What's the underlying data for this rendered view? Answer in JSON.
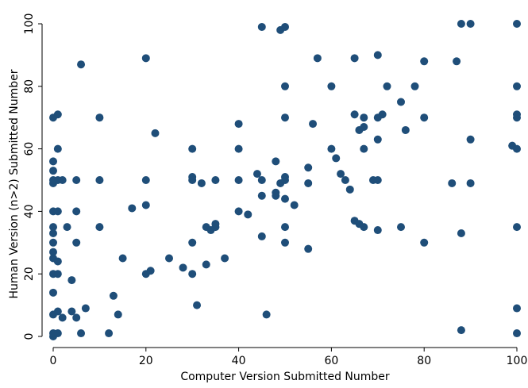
{
  "chart_data": {
    "type": "scatter",
    "xlabel": "Computer Version Submitted Number",
    "ylabel": "Human Version (n>2) Submitted Number",
    "xlim": [
      0,
      100
    ],
    "ylim": [
      0,
      100
    ],
    "xticks": [
      0,
      20,
      40,
      60,
      80,
      100
    ],
    "yticks": [
      0,
      20,
      40,
      60,
      80,
      100
    ],
    "grid": false,
    "marker_color": "#1f4e79",
    "points": [
      [
        0,
        0
      ],
      [
        0,
        1
      ],
      [
        0,
        7
      ],
      [
        0,
        14
      ],
      [
        0,
        20
      ],
      [
        0,
        25
      ],
      [
        0,
        27
      ],
      [
        0,
        30
      ],
      [
        0,
        33
      ],
      [
        0,
        35
      ],
      [
        0,
        40
      ],
      [
        0,
        49
      ],
      [
        0,
        50
      ],
      [
        0,
        53
      ],
      [
        0,
        56
      ],
      [
        0,
        70
      ],
      [
        1,
        1
      ],
      [
        1,
        8
      ],
      [
        1,
        20
      ],
      [
        1,
        24
      ],
      [
        1,
        40
      ],
      [
        1,
        50
      ],
      [
        1,
        60
      ],
      [
        1,
        71
      ],
      [
        2,
        6
      ],
      [
        2,
        50
      ],
      [
        3,
        35
      ],
      [
        4,
        8
      ],
      [
        4,
        18
      ],
      [
        5,
        6
      ],
      [
        5,
        30
      ],
      [
        5,
        40
      ],
      [
        5,
        50
      ],
      [
        6,
        1
      ],
      [
        6,
        87
      ],
      [
        7,
        9
      ],
      [
        10,
        35
      ],
      [
        10,
        50
      ],
      [
        10,
        70
      ],
      [
        12,
        1
      ],
      [
        13,
        13
      ],
      [
        14,
        7
      ],
      [
        15,
        25
      ],
      [
        17,
        41
      ],
      [
        20,
        20
      ],
      [
        20,
        42
      ],
      [
        20,
        50
      ],
      [
        20,
        89
      ],
      [
        21,
        21
      ],
      [
        22,
        65
      ],
      [
        25,
        25
      ],
      [
        28,
        22
      ],
      [
        30,
        20
      ],
      [
        30,
        30
      ],
      [
        30,
        50
      ],
      [
        30,
        51
      ],
      [
        30,
        60
      ],
      [
        31,
        10
      ],
      [
        32,
        49
      ],
      [
        33,
        23
      ],
      [
        33,
        35
      ],
      [
        34,
        34
      ],
      [
        35,
        35
      ],
      [
        35,
        36
      ],
      [
        35,
        50
      ],
      [
        37,
        25
      ],
      [
        40,
        40
      ],
      [
        40,
        50
      ],
      [
        40,
        60
      ],
      [
        40,
        68
      ],
      [
        42,
        39
      ],
      [
        44,
        52
      ],
      [
        45,
        32
      ],
      [
        45,
        45
      ],
      [
        45,
        50
      ],
      [
        45,
        99
      ],
      [
        46,
        7
      ],
      [
        48,
        45
      ],
      [
        48,
        46
      ],
      [
        48,
        56
      ],
      [
        49,
        49
      ],
      [
        49,
        98
      ],
      [
        50,
        30
      ],
      [
        50,
        35
      ],
      [
        50,
        44
      ],
      [
        50,
        50
      ],
      [
        50,
        51
      ],
      [
        50,
        70
      ],
      [
        50,
        80
      ],
      [
        50,
        99
      ],
      [
        52,
        42
      ],
      [
        55,
        28
      ],
      [
        55,
        49
      ],
      [
        55,
        54
      ],
      [
        56,
        68
      ],
      [
        57,
        89
      ],
      [
        60,
        60
      ],
      [
        60,
        80
      ],
      [
        61,
        57
      ],
      [
        62,
        52
      ],
      [
        63,
        50
      ],
      [
        64,
        47
      ],
      [
        65,
        37
      ],
      [
        65,
        71
      ],
      [
        65,
        89
      ],
      [
        66,
        36
      ],
      [
        66,
        66
      ],
      [
        67,
        35
      ],
      [
        67,
        60
      ],
      [
        67,
        67
      ],
      [
        67,
        70
      ],
      [
        69,
        50
      ],
      [
        70,
        34
      ],
      [
        70,
        50
      ],
      [
        70,
        63
      ],
      [
        70,
        70
      ],
      [
        70,
        90
      ],
      [
        71,
        71
      ],
      [
        72,
        80
      ],
      [
        75,
        35
      ],
      [
        75,
        75
      ],
      [
        76,
        66
      ],
      [
        78,
        80
      ],
      [
        80,
        30
      ],
      [
        80,
        70
      ],
      [
        80,
        88
      ],
      [
        86,
        49
      ],
      [
        87,
        88
      ],
      [
        88,
        2
      ],
      [
        88,
        33
      ],
      [
        88,
        100
      ],
      [
        90,
        49
      ],
      [
        90,
        63
      ],
      [
        90,
        100
      ],
      [
        99,
        61
      ],
      [
        100,
        1
      ],
      [
        100,
        9
      ],
      [
        100,
        35
      ],
      [
        100,
        60
      ],
      [
        100,
        70
      ],
      [
        100,
        71
      ],
      [
        100,
        80
      ],
      [
        100,
        100
      ]
    ]
  }
}
